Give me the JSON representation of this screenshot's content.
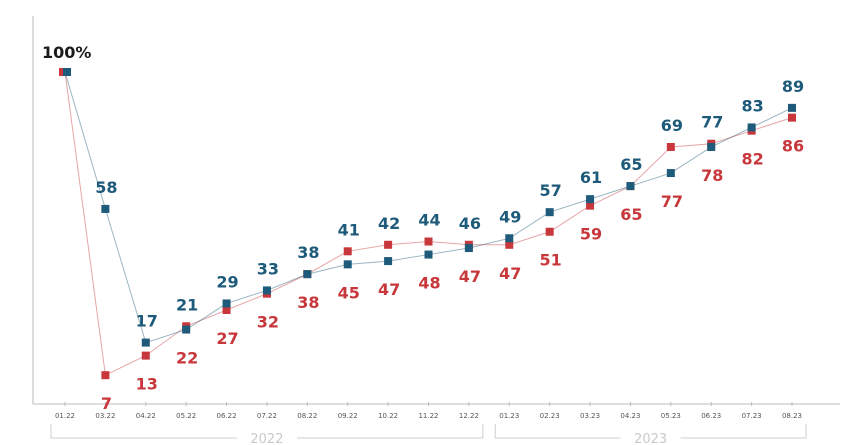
{
  "chart_data": {
    "type": "line",
    "categories": [
      "01.22",
      "03.22",
      "04.22",
      "05.22",
      "06.22",
      "07.22",
      "08.22",
      "09.22",
      "10.22",
      "11.22",
      "12.22",
      "01.23",
      "02.23",
      "03.23",
      "04.23",
      "05.23",
      "06.23",
      "07.23",
      "08.23"
    ],
    "start_label": "100%",
    "series": [
      {
        "name": "",
        "color": "#1e5a7a",
        "values": [
          100,
          58,
          17,
          21,
          29,
          33,
          38,
          41,
          42,
          44,
          46,
          49,
          57,
          61,
          65,
          69,
          77,
          83,
          89
        ]
      },
      {
        "name": "",
        "color": "#c8373c",
        "values": [
          100,
          7,
          13,
          22,
          27,
          32,
          38,
          45,
          47,
          48,
          47,
          47,
          51,
          59,
          65,
          77,
          78,
          82,
          86
        ]
      }
    ],
    "year_groups": [
      {
        "label": "2022",
        "from": "01.22",
        "to": "12.22"
      },
      {
        "label": "2023",
        "from": "01.23",
        "to": "08.23"
      }
    ],
    "xlabel": "",
    "ylabel": "",
    "ylim": [
      0,
      100
    ],
    "grid": false,
    "legend": "none"
  }
}
